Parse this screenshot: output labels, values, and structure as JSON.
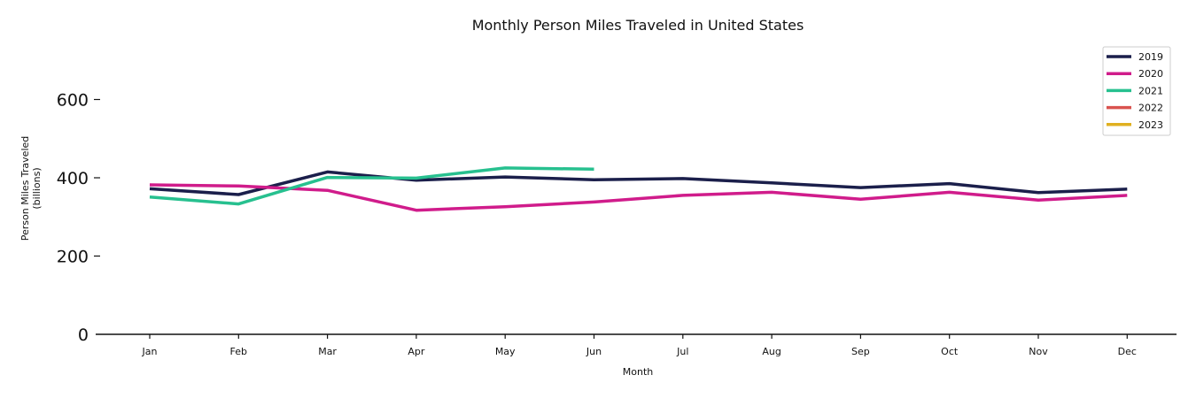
{
  "chart_data": {
    "type": "line",
    "title": "Monthly Person Miles Traveled in United States",
    "xlabel": "Month",
    "ylabel": [
      "Person Miles Traveled",
      "(billions)"
    ],
    "categories": [
      "Jan",
      "Feb",
      "Mar",
      "Apr",
      "May",
      "Jun",
      "Jul",
      "Aug",
      "Sep",
      "Oct",
      "Nov",
      "Dec"
    ],
    "ylim": [
      0,
      750
    ],
    "yticks": [
      0,
      200,
      400,
      600
    ],
    "grid": false,
    "legend_position": "top-right",
    "series": [
      {
        "name": "2019",
        "color": "#1b1f4b",
        "values": [
          372,
          357,
          415,
          394,
          402,
          395,
          398,
          387,
          375,
          385,
          362,
          371
        ]
      },
      {
        "name": "2020",
        "color": "#d01c8b",
        "values": [
          382,
          379,
          368,
          317,
          326,
          338,
          355,
          363,
          345,
          363,
          343,
          355
        ]
      },
      {
        "name": "2021",
        "color": "#27c08f",
        "values": [
          351,
          333,
          401,
          399,
          425,
          422,
          null,
          null,
          null,
          null,
          null,
          null
        ]
      },
      {
        "name": "2022",
        "color": "#d9534f",
        "values": [
          null,
          null,
          null,
          null,
          null,
          null,
          null,
          null,
          null,
          null,
          null,
          null
        ]
      },
      {
        "name": "2023",
        "color": "#e0b020",
        "values": [
          null,
          null,
          null,
          null,
          null,
          null,
          null,
          null,
          null,
          null,
          null,
          null
        ]
      }
    ]
  }
}
